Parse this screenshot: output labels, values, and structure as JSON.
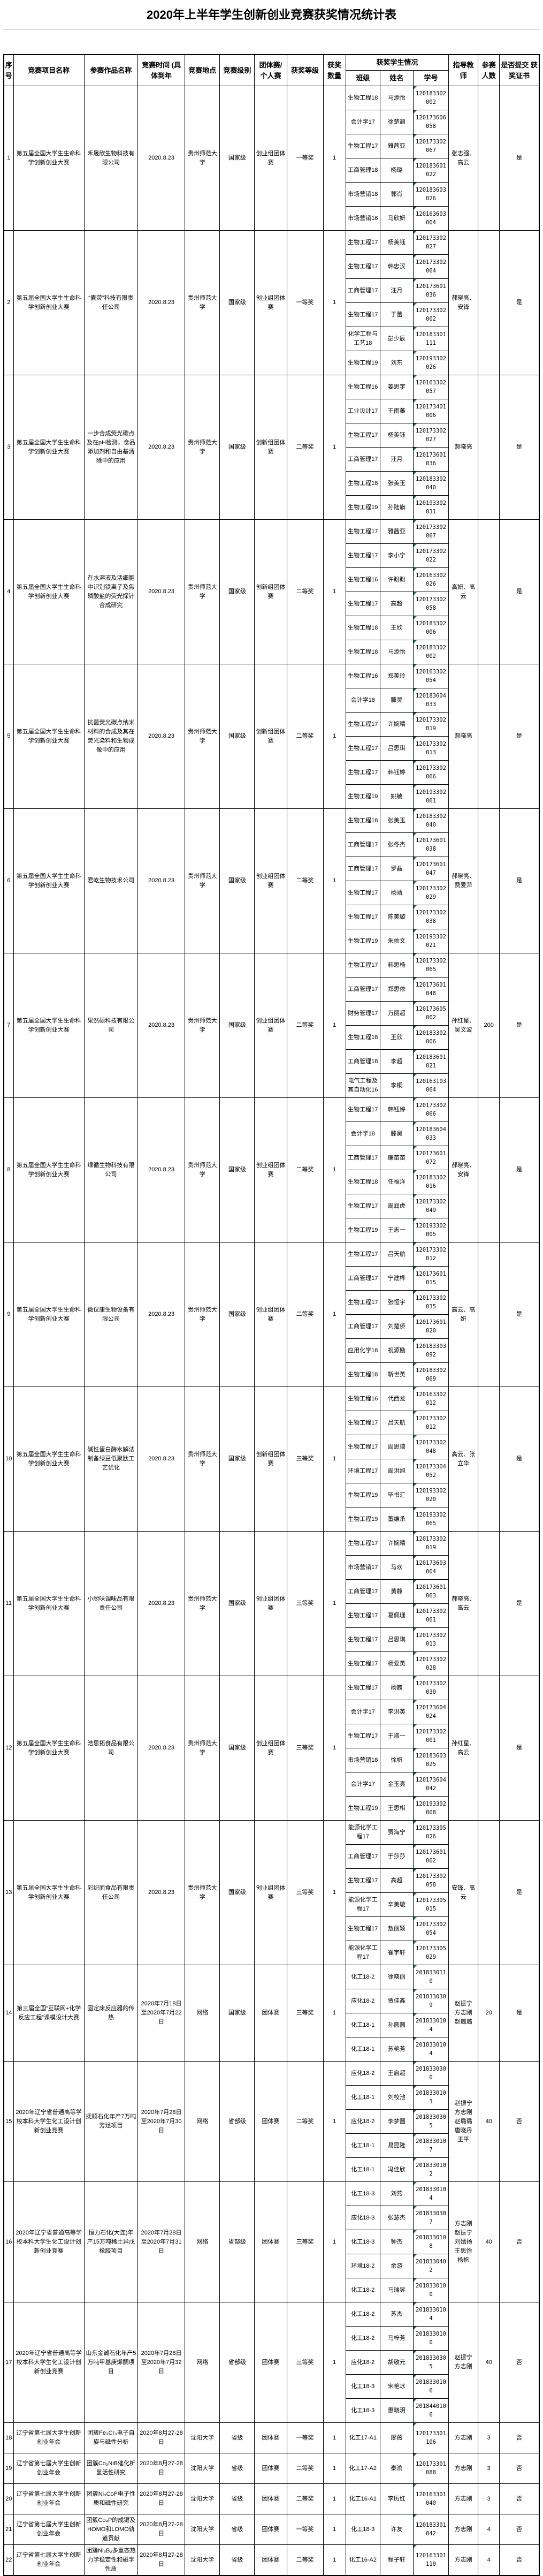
{
  "title": "2020年上半年学生创新创业竞赛获奖情况统计表",
  "header": {
    "no": "序号",
    "competition": "竞赛项目名称",
    "entry": "参赛作品名称",
    "time": "竞赛时间 (具体到年",
    "location": "竞赛地点",
    "level": "竞赛级别",
    "team": "团体赛/ 个人赛",
    "award": "获奖等级",
    "count": "获奖 数量",
    "students_group": "获奖学生情况",
    "student_class": "班级",
    "student_name": "姓名",
    "student_id": "学号",
    "advisor": "指导教 师",
    "participants": "参赛 人数",
    "certificate": "是否提交 获奖证书"
  },
  "marker_color": "#217346",
  "rows": [
    {
      "no": "1",
      "competition": "第五届全国大学生生命科学创新创业大赛",
      "entry": "禾晟欣生物科技有限公司",
      "time": "2020.8.23",
      "location": "贵州师范大学",
      "level": "国家级",
      "team": "创业组团体赛",
      "award": "一等奖",
      "count": "1",
      "students": [
        {
          "class": "生物工程18",
          "name": "马添怡",
          "id": "120183302002"
        },
        {
          "class": "会计学17",
          "name": "徐楚翘",
          "id": "120173606058"
        },
        {
          "class": "生物工程17",
          "name": "雅茜亚",
          "id": "120173302067"
        },
        {
          "class": "工商管理18",
          "name": "杨璐",
          "id": "120183601022"
        },
        {
          "class": "市场营销18",
          "name": "郭肖",
          "id": "120183603026"
        },
        {
          "class": "市场营销16",
          "name": "马欣妍",
          "id": "120163603004"
        }
      ],
      "advisors": "张志强、高云",
      "participants": "",
      "certificate": "是"
    },
    {
      "no": "2",
      "competition": "第五届全国大学生生命科学创新创业大赛",
      "entry": "“囊荧”科技有限责任公司",
      "time": "2020.8.23",
      "location": "贵州师范大学",
      "level": "国家级",
      "team": "创业组团体赛",
      "award": "一等奖",
      "count": "1",
      "students": [
        {
          "class": "生物工程17",
          "name": "杨美钰",
          "id": "120173302027"
        },
        {
          "class": "生物工程17",
          "name": "韩忠汉",
          "id": "120173302064"
        },
        {
          "class": "工商管理17",
          "name": "汪月",
          "id": "120173601036"
        },
        {
          "class": "生物工程17",
          "name": "于蕾",
          "id": "120173302002"
        },
        {
          "class": "化学工程与工艺18",
          "name": "彭少辰",
          "id": "120183301111"
        },
        {
          "class": "生物工程19",
          "name": "刘东",
          "id": "120193302026"
        }
      ],
      "advisors": "郝晓亮、安锋",
      "participants": "",
      "certificate": "是"
    },
    {
      "no": "3",
      "competition": "第五届全国大学生生命科学创新创业大赛",
      "entry": "一步合成荧光碳点及在pH检测，食品添加剂和自由基清除中的应用",
      "time": "2020.8.23",
      "location": "贵州师范大学",
      "level": "国家级",
      "team": "创新组团体赛",
      "award": "二等奖",
      "count": "1",
      "students": [
        {
          "class": "生物工程16",
          "name": "姜思宇",
          "id": "120163302057"
        },
        {
          "class": "工业设计17",
          "name": "王雨蕃",
          "id": "120173401006"
        },
        {
          "class": "生物工程17",
          "name": "杨美钰",
          "id": "120173302027"
        },
        {
          "class": "工商管理17",
          "name": "汪月",
          "id": "120173601036"
        },
        {
          "class": "生物工程18",
          "name": "张美玉",
          "id": "120183302040"
        },
        {
          "class": "生物工程19",
          "name": "孙陆旗",
          "id": "120193302031"
        }
      ],
      "advisors": "郝晓亮",
      "participants": "",
      "certificate": "是"
    },
    {
      "no": "4",
      "competition": "第五届全国大学生生命科学创新创业大赛",
      "entry": "在水溶液及活细胞中识别铁离子及焦磷酸盐的荧光探针合成研究",
      "time": "2020.8.23",
      "location": "贵州师范大学",
      "level": "国家级",
      "team": "创新组团体赛",
      "award": "二等奖",
      "count": "1",
      "students": [
        {
          "class": "生物工程17",
          "name": "雅茜亚",
          "id": "120173302067"
        },
        {
          "class": "生物工程17",
          "name": "李小宁",
          "id": "120173302022"
        },
        {
          "class": "生物工程16",
          "name": "许盼盼",
          "id": "120163302026"
        },
        {
          "class": "生物工程17",
          "name": "高超",
          "id": "120173302058"
        },
        {
          "class": "生物工程18",
          "name": "王欣",
          "id": "120183302006"
        },
        {
          "class": "生物工程18",
          "name": "马添怡",
          "id": "120183302002"
        }
      ],
      "advisors": "高妍、高云",
      "participants": "",
      "certificate": "是"
    },
    {
      "no": "5",
      "competition": "第五届全国大学生生命科学创新创业大赛",
      "entry": "抗菌荧光碳点纳米材料的合成及其在荧光染料和生物成像中的应用",
      "time": "2020.8.23",
      "location": "贵州师范大学",
      "level": "国家级",
      "team": "创新组团体赛",
      "award": "二等奖",
      "count": "1",
      "students": [
        {
          "class": "生物工程16",
          "name": "郑美玲",
          "id": "120163302054"
        },
        {
          "class": "会计学18",
          "name": "滕昊",
          "id": "120183604033"
        },
        {
          "class": "生物工程17",
          "name": "许婉晴",
          "id": "120173302019"
        },
        {
          "class": "生物工程17",
          "name": "吕思琪",
          "id": "120173302013"
        },
        {
          "class": "生物工程17",
          "name": "韩钰婷",
          "id": "120173302066"
        },
        {
          "class": "生物工程19",
          "name": "姚敏",
          "id": "120193302061"
        }
      ],
      "advisors": "郝晓亮",
      "participants": "",
      "certificate": "是"
    },
    {
      "no": "6",
      "competition": "第五届全国大学生生命科学创新创业大赛",
      "entry": "君屹生物技术公司",
      "time": "2020.8.23",
      "location": "贵州师范大学",
      "level": "国家级",
      "team": "创业组团体赛",
      "award": "二等奖",
      "count": "1",
      "students": [
        {
          "class": "生物工程18",
          "name": "张美玉",
          "id": "120183302040"
        },
        {
          "class": "工商管理17",
          "name": "张冬杰",
          "id": "120173601038"
        },
        {
          "class": "工商管理17",
          "name": "罗晶",
          "id": "120173601047"
        },
        {
          "class": "生物工程17",
          "name": "杨靖",
          "id": "120173302029"
        },
        {
          "class": "生物工程17",
          "name": "陈美璇",
          "id": "120173302038"
        },
        {
          "class": "生物工程19",
          "name": "朱依文",
          "id": "120193302021"
        }
      ],
      "advisors": "郝晓亮、费爱萍",
      "participants": "",
      "certificate": "是"
    },
    {
      "no": "7",
      "competition": "第五届全国大学生生命科学创新创业大赛",
      "entry": "果然硕科技有限公司",
      "time": "2020.8.23",
      "location": "贵州师范大学",
      "level": "国家级",
      "team": "创业组团体赛",
      "award": "二等奖",
      "count": "1",
      "students": [
        {
          "class": "生物工程17",
          "name": "韩思杨",
          "id": "120173302065"
        },
        {
          "class": "工商管理17",
          "name": "郑思依",
          "id": "120173601048"
        },
        {
          "class": "财务管理17",
          "name": "万丽超",
          "id": "120173605002"
        },
        {
          "class": "生物工程18",
          "name": "王欣",
          "id": "120183302006"
        },
        {
          "class": "工商管理18",
          "name": "李超",
          "id": "120183601021"
        },
        {
          "class": "电气工程及其自动化16",
          "name": "李桐",
          "id": "120163103064"
        }
      ],
      "advisors": "孙红星、吴文波",
      "participants": "200",
      "certificate": "是"
    },
    {
      "no": "8",
      "competition": "第五届全国大学生生命科学创新创业大赛",
      "entry": "绿循生物科技有限公司",
      "time": "2020.8.23",
      "location": "贵州师范大学",
      "level": "国家级",
      "team": "创业组团体赛",
      "award": "二等奖",
      "count": "1",
      "students": [
        {
          "class": "生物工程17",
          "name": "韩钰婷",
          "id": "120173302066"
        },
        {
          "class": "会计学18",
          "name": "滕昊",
          "id": "120183604033"
        },
        {
          "class": "工商管理17",
          "name": "廉苗苗",
          "id": "120173601072"
        },
        {
          "class": "生物工程18",
          "name": "任福洋",
          "id": "120183302016"
        },
        {
          "class": "生物工程17",
          "name": "周润虎",
          "id": "120173302049"
        },
        {
          "class": "生物工程19",
          "name": "王志一",
          "id": "120193302005"
        }
      ],
      "advisors": "郝晓亮、安锋",
      "participants": "",
      "certificate": "是"
    },
    {
      "no": "9",
      "competition": "第五届全国大学生生命科学创新创业大赛",
      "entry": "微仪康生物设备有限公司",
      "time": "2020.8.23",
      "location": "贵州师范大学",
      "level": "国家级",
      "team": "创业组团体赛",
      "award": "二等奖",
      "count": "1",
      "students": [
        {
          "class": "生物工程17",
          "name": "吕天航",
          "id": "120173302012"
        },
        {
          "class": "工商管理17",
          "name": "宁建桦",
          "id": "120173601015"
        },
        {
          "class": "生物工程17",
          "name": "张恒宇",
          "id": "120173302035"
        },
        {
          "class": "工商管理17",
          "name": "刘楚侨",
          "id": "120173601020"
        },
        {
          "class": "应用化学18",
          "name": "祝源励",
          "id": "120183303092"
        },
        {
          "class": "生物工程18",
          "name": "靳世英",
          "id": "120183302069"
        }
      ],
      "advisors": "高云、高妍",
      "participants": "",
      "certificate": "是"
    },
    {
      "no": "10",
      "competition": "第五届全国大学生生命科学创新创业大赛",
      "entry": "碱性蛋白酶水解法制备绿豆低聚肽工艺优化",
      "time": "2020.8.23",
      "location": "贵州师范大学",
      "level": "国家级",
      "team": "创新组团体赛",
      "award": "三等奖",
      "count": "1",
      "students": [
        {
          "class": "生物工程16",
          "name": "代西龙",
          "id": "120163302012"
        },
        {
          "class": "生物工程17",
          "name": "吕天航",
          "id": "120173302012"
        },
        {
          "class": "生物工程17",
          "name": "周思琦",
          "id": "120173302048"
        },
        {
          "class": "环境工程17",
          "name": "周洪旭",
          "id": "120173304052"
        },
        {
          "class": "生物工程19",
          "name": "毕书汇",
          "id": "120193302020"
        },
        {
          "class": "生物工程19",
          "name": "董维承",
          "id": "120193302065"
        }
      ],
      "advisors": "高云、张立华",
      "participants": "",
      "certificate": "是"
    },
    {
      "no": "11",
      "competition": "第五届全国大学生生命科学创新创业大赛",
      "entry": "小厨味调味品有限责任公司",
      "time": "2020.8.23",
      "location": "贵州师范大学",
      "level": "国家级",
      "team": "创业组团体赛",
      "award": "三等奖",
      "count": "1",
      "students": [
        {
          "class": "生物工程17",
          "name": "许婉晴",
          "id": "120173302019"
        },
        {
          "class": "市场营销17",
          "name": "马欢",
          "id": "120173603004"
        },
        {
          "class": "工商管理17",
          "name": "黄静",
          "id": "120173601063"
        },
        {
          "class": "生物工程17",
          "name": "葛佩珊",
          "id": "120173302061"
        },
        {
          "class": "生物工程17",
          "name": "吕思琪",
          "id": "120173302013"
        },
        {
          "class": "生物工程17",
          "name": "杨爱英",
          "id": "120173302028"
        }
      ],
      "advisors": "郝晓亮、高云",
      "participants": "",
      "certificate": "是"
    },
    {
      "no": "12",
      "competition": "第五届全国大学生生命科学创新创业大赛",
      "entry": "浩思拓食品有限公司",
      "time": "2020.8.23",
      "location": "贵州师范大学",
      "level": "国家级",
      "team": "创业组团体赛",
      "award": "三等奖",
      "count": "1",
      "students": [
        {
          "class": "生物工程17",
          "name": "杨巍",
          "id": "120173302030"
        },
        {
          "class": "会计学17",
          "name": "李洪英",
          "id": "120173604024"
        },
        {
          "class": "生物工程17",
          "name": "于淑一",
          "id": "120173302001"
        },
        {
          "class": "市场营销18",
          "name": "徐帆",
          "id": "120183603025"
        },
        {
          "class": "会计学17",
          "name": "金玉亮",
          "id": "120173604042"
        },
        {
          "class": "生物工程19",
          "name": "王思棋",
          "id": "120193302008"
        }
      ],
      "advisors": "孙红星、高云",
      "participants": "",
      "certificate": "是"
    },
    {
      "no": "13",
      "competition": "第五届全国大学生生命科学创新创业大赛",
      "entry": "彩织面食品有限责任公司",
      "time": "2020.8.23",
      "location": "贵州师范大学",
      "level": "国家级",
      "team": "创业组团体赛",
      "award": "三等奖",
      "count": "1",
      "students": [
        {
          "class": "能源化学工程17",
          "name": "贾海宁",
          "id": "120173305026"
        },
        {
          "class": "工商管理17",
          "name": "于莎莎",
          "id": "120173601002"
        },
        {
          "class": "生物工程17",
          "name": "高超",
          "id": "120173302058"
        },
        {
          "class": "能源化学工程17",
          "name": "辛美璇",
          "id": "120173305015"
        },
        {
          "class": "生物工程17",
          "name": "敖丽颖",
          "id": "120173302054"
        },
        {
          "class": "能源化学工程17",
          "name": "崔宇轩",
          "id": "120173305029"
        }
      ],
      "advisors": "安锋、高云",
      "participants": "",
      "certificate": "是"
    },
    {
      "no": "14",
      "competition": "第三届全国“互联网+化学反应工程”课模设计大赛",
      "entry": "固定床反应器的传热",
      "time": "2020年7月18日至2020年7月22日",
      "location": "网络",
      "level": "国家级",
      "team": "团体赛",
      "award": "三等奖",
      "count": "1",
      "students": [
        {
          "class": "化工18-2",
          "name": "徐晓丽",
          "id": "2018330110"
        },
        {
          "class": "应化18-2",
          "name": "贾佳鑫",
          "id": "2018330309"
        },
        {
          "class": "化工18-1",
          "name": "孙圆圆",
          "id": "2018330104"
        },
        {
          "class": "化工18-1",
          "name": "苏艳芳",
          "id": "2018330104"
        }
      ],
      "advisors": "赵振宁\n方志刚\n赵璐璐",
      "participants": "20",
      "certificate": "是"
    },
    {
      "no": "15",
      "competition": "2020年辽宁省普通高等学校本科大学生化工设计创新创业竞赛",
      "entry": "抚顺石化年产7万吨芳烃项目",
      "time": "2020年7月28日至2020年7月30日",
      "location": "网络",
      "level": "省部级",
      "team": "团体赛",
      "award": "二等奖",
      "count": "1",
      "students": [
        {
          "class": "应化18-2",
          "name": "王启超",
          "id": "2018330300"
        },
        {
          "class": "化工18-1",
          "name": "刘校池",
          "id": "2018330103"
        },
        {
          "class": "应化18-2",
          "name": "李梦圆",
          "id": "2018330305"
        },
        {
          "class": "化工18-1",
          "name": "易昆隆",
          "id": "2018330107"
        },
        {
          "class": "化工18-1",
          "name": "冯佳欣",
          "id": "2018330102"
        }
      ],
      "advisors": "赵振宁\n方志刚\n赵璐璐\n唐晓丹\n王平",
      "participants": "40",
      "certificate": "否"
    },
    {
      "no": "16",
      "competition": "2020年辽宁省普通高等学校本科大学生化工设计创新创业竞赛",
      "entry": "恒力石化(大连)年产15万吨稀土异戊橡胶项目",
      "time": "2020年7月28日至2020年7月31日",
      "location": "网络",
      "level": "省部级",
      "team": "团体赛",
      "award": "三等奖",
      "count": "1",
      "students": [
        {
          "class": "化工18-3",
          "name": "刘燕",
          "id": "2018330104"
        },
        {
          "class": "应化18-3",
          "name": "张慧杰",
          "id": "2018330307"
        },
        {
          "class": "化工18-3",
          "name": "钟杰",
          "id": "2018330108"
        },
        {
          "class": "环境18-2",
          "name": "余游",
          "id": "2018330402"
        },
        {
          "class": "化工18-2",
          "name": "马瑞昱",
          "id": "2018330100"
        }
      ],
      "advisors": "方志刚\n赵振宁\n刘婧扬\n王思怡\n杨帆",
      "participants": "40",
      "certificate": "否"
    },
    {
      "no": "17",
      "competition": "2020年辽宁省普通高等学校本科大学生化工设计创新创业竞赛",
      "entry": "山东金诚石化年产5万吨甲基庚烯酮项目",
      "time": "2020年7月28日至2020年7月32日",
      "location": "网络",
      "level": "省部级",
      "team": "团体赛",
      "award": "三等奖",
      "count": "1",
      "students": [
        {
          "class": "化工18-2",
          "name": "苏杰",
          "id": "2018330104"
        },
        {
          "class": "化工18-2",
          "name": "马梓芳",
          "id": "2018330100"
        },
        {
          "class": "应化18-2",
          "name": "胡敬元",
          "id": "2018330305"
        },
        {
          "class": "化工18-3",
          "name": "宋艳冰",
          "id": "2018330106"
        },
        {
          "class": "化工18-3",
          "name": "惠晓玥",
          "id": "2018440106"
        }
      ],
      "advisors": "赵振宁\n方志刚",
      "participants": "40",
      "certificate": "否"
    },
    {
      "no": "18",
      "competition": "辽宁省第七届大学生创新创业年会",
      "entry": "团簇Fe₃Cr₃电子自旋与磁性分析",
      "time": "2020年8月27-28日",
      "location": "沈阳大学",
      "level": "省级",
      "team": "团体赛",
      "award": "一等奖",
      "count": "1",
      "students": [
        {
          "class": "化工17-A1",
          "name": "廖薇",
          "id": "120173301106"
        }
      ],
      "advisors": "方志刚",
      "participants": "3",
      "certificate": "否"
    },
    {
      "no": "19",
      "competition": "辽宁省第七届大学生创新创业年会",
      "entry": "团簇Co₃NiB催化析氢活性研究",
      "time": "2020年8月27-28日",
      "location": "沈阳大学",
      "level": "省级",
      "team": "团体赛",
      "award": "二等奖",
      "count": "1",
      "students": [
        {
          "class": "化工17-A2",
          "name": "秦渝",
          "id": "120173301088"
        }
      ],
      "advisors": "方志刚",
      "participants": "3",
      "certificate": "否"
    },
    {
      "no": "20",
      "competition": "辽宁省第七届大学生创新创业年会",
      "entry": "团簇Ni₃CoP电子性质和磁性研究",
      "time": "2020年8月27-28日",
      "location": "沈阳大学",
      "level": "省级",
      "team": "团体赛",
      "award": "二等奖",
      "count": "1",
      "students": [
        {
          "class": "化工16-A1",
          "name": "李历红",
          "id": "120163301040"
        }
      ],
      "advisors": "方志刚",
      "participants": "3",
      "certificate": "否"
    },
    {
      "no": "21",
      "competition": "辽宁省第七届大学生创新创业年会",
      "entry": "团簇Co₄P的成键及HOMO和LOMO轨道贡献",
      "time": "2020年8月27-28日",
      "location": "沈阳大学",
      "level": "省级",
      "team": "团体赛",
      "award": "一等奖",
      "count": "1",
      "students": [
        {
          "class": "化工18-3",
          "name": "许友",
          "id": "120183301042"
        }
      ],
      "advisors": "方志刚",
      "participants": "4",
      "certificate": "否"
    },
    {
      "no": "22",
      "competition": "辽宁省第七届大学生创新创业年会",
      "entry": "团簇Ni₃B₂多重态热力学稳定性和磁学性质",
      "time": "2020年8月27-28日",
      "location": "沈阳大学",
      "level": "省级",
      "team": "团体赛",
      "award": "二等奖",
      "count": "1",
      "students": [
        {
          "class": "化工16-A2",
          "name": "程子轩",
          "id": "120163301110"
        }
      ],
      "advisors": "方志刚",
      "participants": "4",
      "certificate": "否"
    }
  ]
}
